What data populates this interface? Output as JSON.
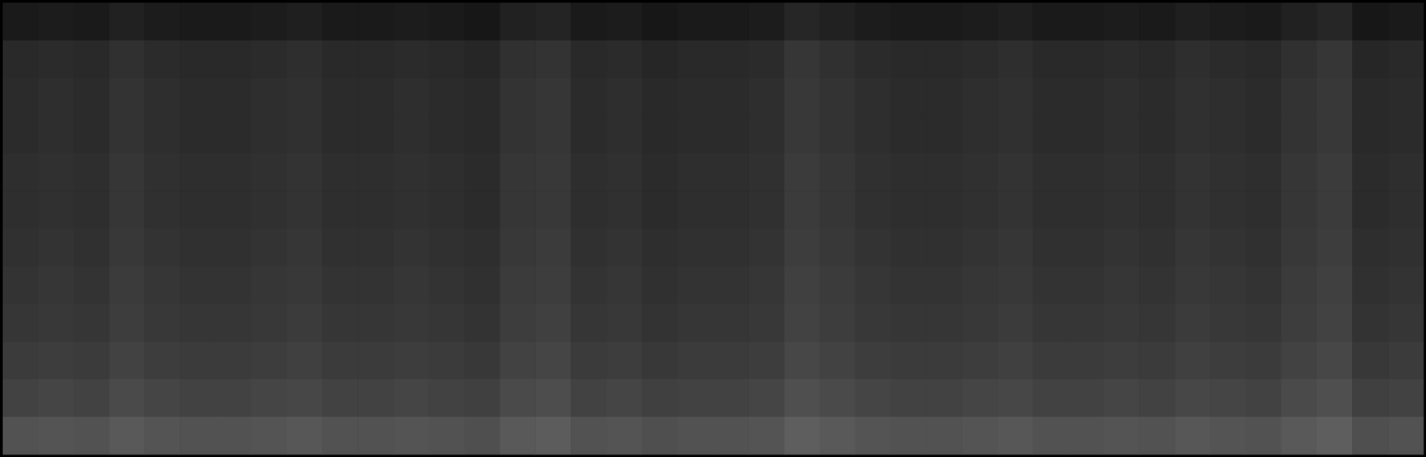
{
  "chart_data": {
    "type": "heatmap",
    "tick_labels": false,
    "zlim": [
      0,
      100
    ],
    "cells": [
      [
        10,
        11,
        10,
        13,
        11,
        10,
        10,
        11,
        12,
        10,
        10,
        11,
        10,
        9,
        13,
        14,
        10,
        11,
        9,
        10,
        10,
        11,
        15,
        13,
        11,
        10,
        10,
        11,
        12,
        10,
        10,
        11,
        10,
        12,
        11,
        10,
        13,
        15,
        9,
        10
      ],
      [
        16,
        17,
        16,
        19,
        17,
        16,
        16,
        17,
        18,
        16,
        16,
        17,
        16,
        15,
        19,
        20,
        16,
        17,
        15,
        16,
        16,
        17,
        21,
        19,
        17,
        16,
        16,
        17,
        18,
        16,
        16,
        17,
        16,
        18,
        17,
        16,
        19,
        21,
        15,
        16
      ],
      [
        17,
        18,
        17,
        20,
        18,
        17,
        17,
        18,
        19,
        17,
        17,
        18,
        17,
        16,
        20,
        21,
        17,
        18,
        16,
        17,
        17,
        18,
        22,
        20,
        18,
        17,
        17,
        18,
        19,
        17,
        17,
        18,
        17,
        19,
        18,
        17,
        20,
        22,
        16,
        17
      ],
      [
        17,
        18,
        17,
        20,
        18,
        17,
        17,
        18,
        19,
        17,
        17,
        18,
        17,
        16,
        20,
        21,
        17,
        18,
        16,
        17,
        17,
        18,
        22,
        20,
        18,
        17,
        17,
        18,
        19,
        17,
        17,
        18,
        17,
        19,
        18,
        17,
        20,
        22,
        16,
        17
      ],
      [
        18,
        19,
        18,
        21,
        19,
        18,
        18,
        19,
        20,
        18,
        18,
        19,
        18,
        17,
        21,
        22,
        18,
        19,
        17,
        18,
        18,
        19,
        23,
        21,
        19,
        18,
        18,
        19,
        20,
        18,
        18,
        19,
        18,
        20,
        19,
        18,
        21,
        23,
        17,
        18
      ],
      [
        18,
        19,
        18,
        21,
        19,
        18,
        18,
        19,
        20,
        18,
        18,
        19,
        18,
        17,
        21,
        22,
        18,
        19,
        17,
        18,
        18,
        19,
        23,
        21,
        19,
        18,
        18,
        19,
        20,
        18,
        18,
        19,
        18,
        20,
        19,
        18,
        21,
        23,
        17,
        18
      ],
      [
        19,
        20,
        19,
        22,
        20,
        19,
        19,
        20,
        21,
        19,
        19,
        20,
        19,
        18,
        22,
        23,
        19,
        20,
        18,
        19,
        19,
        20,
        24,
        22,
        20,
        19,
        19,
        20,
        21,
        19,
        19,
        20,
        19,
        21,
        20,
        19,
        22,
        24,
        18,
        19
      ],
      [
        20,
        21,
        20,
        23,
        21,
        20,
        20,
        21,
        22,
        20,
        20,
        21,
        20,
        19,
        23,
        24,
        20,
        21,
        19,
        20,
        20,
        21,
        25,
        23,
        21,
        20,
        20,
        21,
        22,
        20,
        20,
        21,
        20,
        22,
        21,
        20,
        23,
        25,
        19,
        20
      ],
      [
        21,
        22,
        21,
        24,
        22,
        21,
        21,
        22,
        23,
        21,
        21,
        22,
        21,
        20,
        24,
        25,
        21,
        22,
        20,
        21,
        21,
        22,
        26,
        24,
        22,
        21,
        21,
        22,
        23,
        21,
        21,
        22,
        21,
        23,
        22,
        21,
        24,
        26,
        20,
        21
      ],
      [
        23,
        24,
        23,
        26,
        24,
        23,
        23,
        24,
        25,
        23,
        23,
        24,
        23,
        22,
        26,
        27,
        23,
        24,
        22,
        23,
        23,
        24,
        28,
        26,
        24,
        23,
        23,
        24,
        25,
        23,
        23,
        24,
        23,
        25,
        24,
        23,
        26,
        28,
        22,
        23
      ],
      [
        26,
        27,
        26,
        29,
        27,
        26,
        26,
        27,
        28,
        26,
        26,
        27,
        26,
        25,
        29,
        30,
        26,
        27,
        25,
        26,
        26,
        27,
        31,
        29,
        27,
        26,
        26,
        27,
        28,
        26,
        26,
        27,
        26,
        28,
        27,
        26,
        29,
        31,
        25,
        26
      ],
      [
        32,
        33,
        32,
        35,
        33,
        32,
        32,
        33,
        34,
        32,
        32,
        33,
        32,
        31,
        35,
        36,
        32,
        33,
        31,
        32,
        32,
        33,
        37,
        35,
        33,
        32,
        32,
        33,
        34,
        32,
        32,
        33,
        32,
        34,
        33,
        32,
        35,
        37,
        31,
        32
      ]
    ]
  }
}
